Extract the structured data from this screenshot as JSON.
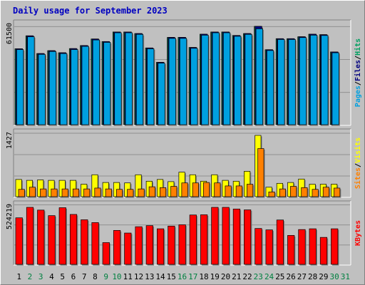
{
  "chart_data": {
    "type": "bar",
    "title": "Daily usage for September 2023",
    "colors": {
      "title": "#0000c0",
      "pages": "#00a0e0",
      "files": "#000080",
      "hits": "#00a060",
      "visits": "#ffff00",
      "sites": "#ff8000",
      "kbytes": "#ff0000",
      "weekend_day_label": "#008040",
      "weekday_day_label": "#000000",
      "background": "#c0c0c0"
    },
    "categories": [
      "1",
      "2",
      "3",
      "4",
      "5",
      "6",
      "7",
      "8",
      "9",
      "10",
      "11",
      "12",
      "13",
      "14",
      "15",
      "16",
      "17",
      "18",
      "19",
      "20",
      "21",
      "22",
      "23",
      "24",
      "25",
      "26",
      "27",
      "28",
      "29",
      "30",
      "31"
    ],
    "weekend_days": [
      "2",
      "3",
      "9",
      "10",
      "16",
      "17",
      "23",
      "24",
      "30",
      "31"
    ],
    "panels": [
      {
        "id": "top",
        "axis_label_parts": [
          "Pages",
          "/",
          "Files",
          "/",
          "Hits"
        ],
        "axis_label_colors": [
          "#00a0e0",
          "#000000",
          "#000080",
          "#000000",
          "#00a060"
        ],
        "ymax_label": "61500",
        "ymax": 61500,
        "series": [
          {
            "name": "Hits",
            "color": "#00a060",
            "values": [
              47500,
              55600,
              44500,
              46300,
              45000,
              47600,
              49500,
              53600,
              52000,
              58000,
              58000,
              57000,
              48000,
              39000,
              54600,
              54600,
              48300,
              56600,
              58000,
              58000,
              55800,
              57000,
              61500,
              46900,
              53800,
              53800,
              55000,
              56600,
              56300,
              45500,
              null
            ]
          },
          {
            "name": "Files",
            "color": "#000080",
            "values": [
              47500,
              55600,
              44500,
              46300,
              45000,
              47600,
              49500,
              53600,
              52000,
              58000,
              58000,
              57000,
              48000,
              39000,
              54600,
              54600,
              48300,
              56600,
              58000,
              58000,
              55800,
              57000,
              61500,
              46900,
              53800,
              53800,
              55000,
              56600,
              56300,
              45500,
              null
            ]
          },
          {
            "name": "Pages",
            "color": "#00a0e0",
            "values": [
              47000,
              55000,
              44000,
              45800,
              44500,
              47000,
              49000,
              53000,
              51500,
              57500,
              57500,
              56500,
              47500,
              38500,
              54000,
              54000,
              47800,
              56000,
              57500,
              57500,
              55300,
              56500,
              60000,
              46400,
              53300,
              53300,
              54500,
              56000,
              55800,
              45000,
              null
            ]
          }
        ]
      },
      {
        "id": "middle",
        "axis_label_parts": [
          "Sites",
          "/",
          "Visits"
        ],
        "axis_label_colors": [
          "#ff8000",
          "#000000",
          "#ffff00"
        ],
        "ymax_label": "1427",
        "ymax": 1427,
        "series": [
          {
            "name": "Visits",
            "color": "#ffff00",
            "values": [
              400,
              380,
              390,
              380,
              380,
              380,
              290,
              510,
              330,
              330,
              320,
              510,
              360,
              400,
              350,
              570,
              510,
              360,
              510,
              380,
              360,
              590,
              1427,
              220,
              310,
              330,
              410,
              290,
              290,
              290,
              null
            ]
          },
          {
            "name": "Sites",
            "color": "#ff8000",
            "values": [
              170,
              220,
              180,
              180,
              180,
              180,
              180,
              200,
              180,
              170,
              170,
              180,
              230,
              210,
              240,
              320,
              320,
              330,
              320,
              250,
              250,
              290,
              1120,
              110,
              180,
              240,
              210,
              170,
              220,
              200,
              null
            ]
          }
        ]
      },
      {
        "id": "bottom",
        "axis_label_parts": [
          "KBytes"
        ],
        "axis_label_colors": [
          "#ff0000"
        ],
        "ymax_label": "524219",
        "ymax": 524219,
        "series": [
          {
            "name": "KBytes",
            "color": "#ff0000",
            "values": [
              428000,
              524219,
              499000,
              448000,
              521000,
              459000,
              410000,
              384000,
              200000,
              312000,
              288000,
              346000,
              356000,
              327000,
              352000,
              364000,
              454000,
              456000,
              524219,
              524219,
              509000,
              501000,
              330000,
              317000,
              408000,
              266000,
              320000,
              327000,
              248000,
              327000,
              null
            ]
          }
        ]
      }
    ]
  }
}
